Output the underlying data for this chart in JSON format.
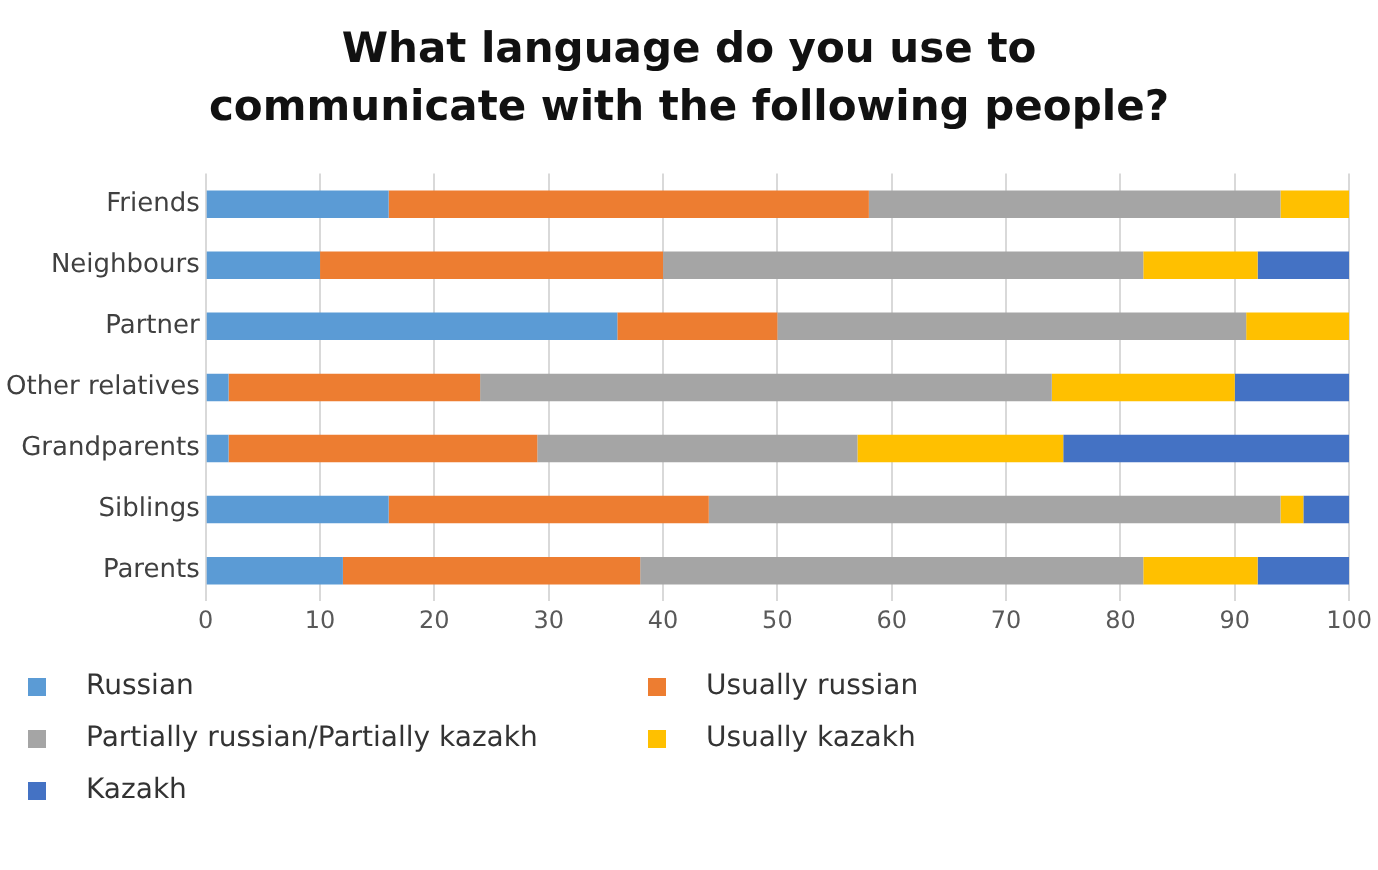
{
  "chart_data": {
    "type": "bar",
    "orientation": "horizontal",
    "stacked": true,
    "title": "What language do you use to communicate with the following people?",
    "categories": [
      "Friends",
      "Neighbours",
      "Partner",
      "Other relatives",
      "Grandparents",
      "Siblings",
      "Parents"
    ],
    "series": [
      {
        "name": "Russian",
        "color": "#5b9bd5",
        "values": [
          16,
          10,
          36,
          2,
          2,
          16,
          12
        ]
      },
      {
        "name": "Usually russian",
        "color": "#ed7d31",
        "values": [
          42,
          30,
          14,
          22,
          27,
          28,
          26
        ]
      },
      {
        "name": "Partially russian/Partially kazakh",
        "color": "#a5a5a5",
        "values": [
          36,
          42,
          41,
          50,
          28,
          50,
          44
        ]
      },
      {
        "name": "Usually kazakh",
        "color": "#ffc000",
        "values": [
          6,
          10,
          9,
          16,
          18,
          2,
          10
        ]
      },
      {
        "name": "Kazakh",
        "color": "#4472c4",
        "values": [
          0,
          8,
          0,
          10,
          25,
          4,
          8
        ]
      }
    ],
    "xlim": [
      0,
      100
    ],
    "xticks": [
      0,
      10,
      20,
      30,
      40,
      50,
      60,
      70,
      80,
      90,
      100
    ],
    "grid": "x",
    "legend": "bottom"
  }
}
